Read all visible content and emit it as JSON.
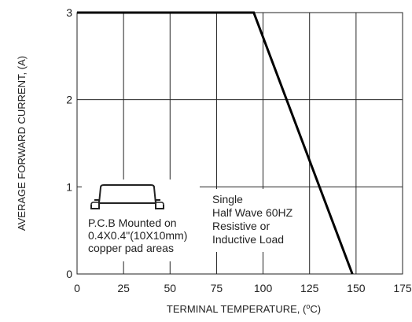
{
  "chart_data": {
    "type": "line",
    "xlabel_main": "TERMINAL TEMPERATURE, (",
    "xlabel_sup": "o",
    "xlabel_unit": "C)",
    "ylabel": "AVERAGE FORWARD CURRENT, (A)",
    "xlim": [
      0,
      175
    ],
    "ylim": [
      0,
      3
    ],
    "x_ticks": [
      "0",
      "25",
      "50",
      "75",
      "100",
      "125",
      "150",
      "175"
    ],
    "y_ticks": [
      "0",
      "1",
      "2",
      "3"
    ],
    "grid": true,
    "series": [
      {
        "x": [
          0,
          95,
          148
        ],
        "y": [
          3,
          3,
          0
        ]
      }
    ],
    "annotations": {
      "pcb": [
        "P.C.B Mounted on",
        "0.4X0.4\"(10X10mm)",
        "copper pad areas"
      ],
      "load": [
        "Single",
        "Half Wave 60HZ",
        "Resistive or",
        "Inductive Load"
      ]
    }
  }
}
